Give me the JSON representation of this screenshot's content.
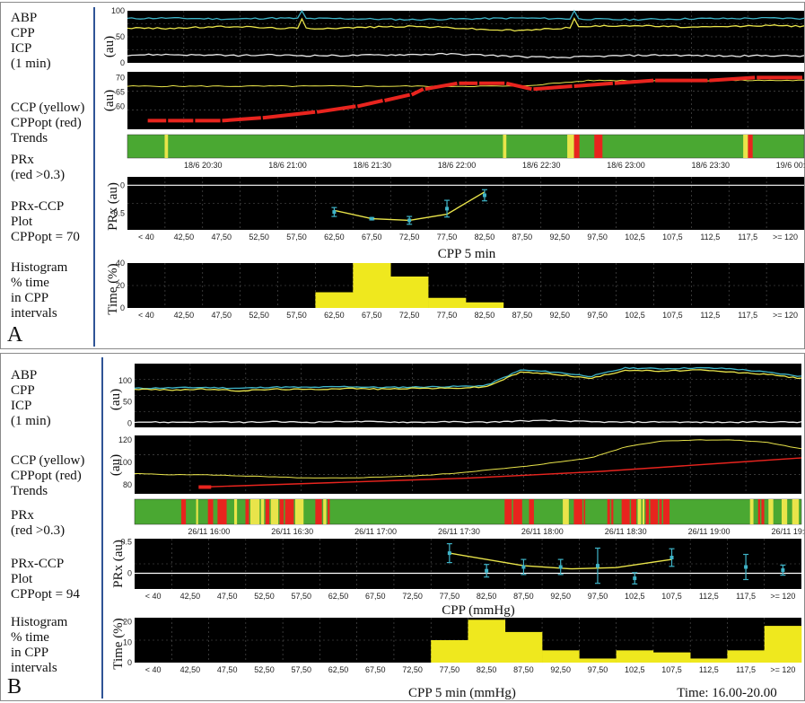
{
  "colors": {
    "background": "#000000",
    "abp": "#3fb4c8",
    "cpp": "#e9e44a",
    "icp": "#e8e8e8",
    "cppopt": "#e8241e",
    "prx_good": "#4aa832",
    "prx_warn": "#e9e44a",
    "prx_bad": "#e8241e",
    "histogram": "#efe81e",
    "fit": "#e9e44a",
    "errorbar": "#3fb4c8",
    "panel_line": "#2f5496"
  },
  "panels": [
    {
      "letter": "A",
      "label_abp": "ABP\nCPP\nICP\n(1 min)",
      "label_trends": "CCP (yellow)\nCPPopt (red)\nTrends",
      "label_prx": "PRx\n(red >0.3)",
      "label_prxccp": "PRx-CCP\nPlot\nCPPopt = 70",
      "label_hist": "Histogram\n% time\nin CPP\nintervals",
      "axis_au_1": "(au)",
      "axis_au_2": "(au)",
      "axis_prx": "PRx (au)",
      "axis_time": "Time (%)",
      "xlabel_prx": "CPP 5 min",
      "xlabel_hist": "",
      "footer_time": ""
    },
    {
      "letter": "B",
      "label_abp": "ABP\nCPP\nICP\n(1 min)",
      "label_trends": "CCP (yellow)\nCPPopt (red)\nTrends",
      "label_prx": "PRx\n(red >0.3)",
      "label_prxccp": "PRx-CCP\nPlot\nCPPopt = 94",
      "label_hist": "Histogram\n% time\nin CPP\nintervals",
      "axis_au_1": "(au)",
      "axis_au_2": "(au)",
      "axis_prx": "PRx (au)",
      "axis_time": "Time (%)",
      "xlabel_prx": "CPP (mmHg)",
      "xlabel_hist": "CPP 5 min (mmHg)",
      "footer_time": "Time: 16.00-20.00"
    }
  ],
  "chart_data": [
    {
      "panel": "A",
      "type": "line",
      "name": "ABP/CPP/ICP trend",
      "ylim": [
        0,
        100
      ],
      "yticks": [
        "100",
        "50",
        "0"
      ],
      "series": [
        {
          "name": "ABP",
          "values": [
            85,
            86,
            85,
            84,
            86,
            85,
            85,
            84,
            83,
            84,
            85,
            86,
            85,
            84,
            83,
            84,
            85,
            85,
            86,
            85
          ]
        },
        {
          "name": "CPP",
          "values": [
            67,
            66,
            68,
            70,
            67,
            66,
            67,
            69,
            70,
            68,
            64,
            62,
            66,
            70,
            72,
            70,
            68,
            70,
            72,
            70
          ]
        },
        {
          "name": "ICP",
          "values": [
            15,
            16,
            15,
            14,
            15,
            14,
            14,
            15,
            16,
            17,
            15,
            12,
            10,
            12,
            14,
            15,
            14,
            13,
            14,
            13
          ]
        }
      ],
      "spikes_x_frac": [
        0.26,
        0.66
      ]
    },
    {
      "panel": "A",
      "type": "line",
      "name": "CCP / CPPopt trends",
      "ylim": [
        52,
        72
      ],
      "yticks": [
        "70",
        "65",
        "60"
      ],
      "series": [
        {
          "name": "CCP",
          "values": [
            67,
            67,
            67,
            67,
            67,
            67,
            67,
            67,
            67,
            67,
            67,
            67,
            68,
            69,
            69,
            69,
            69,
            69,
            69,
            69
          ]
        },
        {
          "name": "CPPopt",
          "x_frac": [
            0.03,
            0.06,
            0.1,
            0.14,
            0.2,
            0.28,
            0.34,
            0.38,
            0.42,
            0.44,
            0.49,
            0.52,
            0.56,
            0.6,
            0.66,
            0.72,
            0.78,
            0.86,
            0.93,
            1.0
          ],
          "values": [
            55,
            55,
            55,
            55,
            56,
            58,
            60,
            62,
            64,
            66,
            68,
            68,
            68,
            66,
            67,
            68,
            69,
            69,
            70,
            70
          ]
        }
      ]
    },
    {
      "panel": "A",
      "type": "heatmap",
      "name": "PRx color bar",
      "bands": [
        {
          "from": 0.0,
          "to": 0.055,
          "state": "good"
        },
        {
          "from": 0.055,
          "to": 0.06,
          "state": "warn"
        },
        {
          "from": 0.06,
          "to": 0.555,
          "state": "good"
        },
        {
          "from": 0.555,
          "to": 0.56,
          "state": "warn"
        },
        {
          "from": 0.56,
          "to": 0.65,
          "state": "good"
        },
        {
          "from": 0.65,
          "to": 0.66,
          "state": "warn"
        },
        {
          "from": 0.66,
          "to": 0.668,
          "state": "bad"
        },
        {
          "from": 0.668,
          "to": 0.69,
          "state": "good"
        },
        {
          "from": 0.69,
          "to": 0.702,
          "state": "bad"
        },
        {
          "from": 0.702,
          "to": 0.91,
          "state": "good"
        },
        {
          "from": 0.91,
          "to": 0.917,
          "state": "warn"
        },
        {
          "from": 0.917,
          "to": 0.924,
          "state": "bad"
        },
        {
          "from": 0.924,
          "to": 1.0,
          "state": "good"
        }
      ],
      "time_ticks": [
        "18/6 20:30",
        "18/6 21:00",
        "18/6 21:30",
        "18/6 22:00",
        "18/6 22:30",
        "18/6 23:00",
        "18/6 23:30",
        "19/6 00:00"
      ]
    },
    {
      "panel": "A",
      "type": "scatter",
      "name": "PRx-CCP plot",
      "ylim": [
        -0.8,
        0.15
      ],
      "yticks": [
        "0",
        "-0.5"
      ],
      "categories": [
        "< 40",
        "42,50",
        "47,50",
        "52,50",
        "57,50",
        "62,50",
        "67,50",
        "72,50",
        "77,50",
        "82,50",
        "87,50",
        "92,50",
        "97,50",
        "102,5",
        "107,5",
        "112,5",
        "117,5",
        ">= 120"
      ],
      "points": [
        {
          "category": "62,50",
          "y": -0.48,
          "err": 0.08
        },
        {
          "category": "67,50",
          "y": -0.6,
          "err": 0.02
        },
        {
          "category": "72,50",
          "y": -0.63,
          "err": 0.07
        },
        {
          "category": "77,50",
          "y": -0.42,
          "err": 0.15
        },
        {
          "category": "82,50",
          "y": -0.18,
          "err": 0.1
        }
      ],
      "fit": [
        [
          62.5,
          -0.45
        ],
        [
          67.5,
          -0.6
        ],
        [
          72.5,
          -0.63
        ],
        [
          77.5,
          -0.52
        ],
        [
          82.5,
          -0.12
        ]
      ],
      "cppopt": 70
    },
    {
      "panel": "A",
      "type": "bar",
      "name": "Histogram",
      "ylim": [
        0,
        40
      ],
      "yticks": [
        "40",
        "20",
        "0"
      ],
      "categories": [
        "< 40",
        "42,50",
        "47,50",
        "52,50",
        "57,50",
        "62,50",
        "67,50",
        "72,50",
        "77,50",
        "82,50",
        "87,50",
        "92,50",
        "97,50",
        "102,5",
        "107,5",
        "112,5",
        "117,5",
        ">= 120"
      ],
      "values": [
        0,
        0,
        0,
        0,
        0,
        14,
        40,
        28,
        9,
        5,
        0,
        0,
        0,
        0,
        0,
        0,
        0,
        0
      ]
    },
    {
      "panel": "B",
      "type": "line",
      "name": "ABP/CPP/ICP trend",
      "ylim": [
        -10,
        140
      ],
      "yticks": [
        "100",
        "50",
        "0"
      ],
      "series": [
        {
          "name": "ABP",
          "values": [
            82,
            83,
            84,
            82,
            85,
            84,
            86,
            84,
            85,
            86,
            88,
            125,
            120,
            110,
            130,
            128,
            130,
            128,
            120,
            110
          ]
        },
        {
          "name": "CPP",
          "values": [
            80,
            78,
            80,
            76,
            80,
            79,
            82,
            80,
            82,
            82,
            85,
            120,
            115,
            105,
            125,
            122,
            125,
            120,
            115,
            105
          ]
        },
        {
          "name": "ICP",
          "values": [
            3,
            2,
            3,
            2,
            3,
            2,
            4,
            3,
            2,
            3,
            2,
            5,
            6,
            3,
            2,
            3,
            2,
            2,
            3,
            2
          ]
        }
      ],
      "spikes_x_frac": []
    },
    {
      "panel": "B",
      "type": "line",
      "name": "CCP / CPPopt trends",
      "ylim": [
        72,
        124
      ],
      "yticks": [
        "120",
        "100",
        "80"
      ],
      "series": [
        {
          "name": "CCP",
          "values": [
            90,
            89,
            89,
            88,
            87,
            86,
            86,
            87,
            88,
            90,
            93,
            96,
            100,
            104,
            114,
            119,
            120,
            120,
            118,
            112
          ]
        },
        {
          "name": "CPPopt",
          "x_frac": [
            0.1,
            0.2,
            0.3,
            0.4,
            0.5,
            0.6,
            0.7,
            0.8,
            0.9,
            1.0
          ],
          "values": [
            78,
            80,
            82,
            84,
            86,
            89,
            92,
            96,
            100,
            104
          ]
        }
      ]
    },
    {
      "panel": "B",
      "type": "heatmap",
      "name": "PRx color bar",
      "pattern_seed": 7,
      "time_ticks": [
        "26/11 16:00",
        "26/11 16:30",
        "26/11 17:00",
        "26/11 17:30",
        "26/11 18:00",
        "26/11 18:30",
        "26/11 19:00",
        "26/11 19:30"
      ]
    },
    {
      "panel": "B",
      "type": "scatter",
      "name": "PRx-CCP plot",
      "ylim": [
        -0.25,
        0.55
      ],
      "yticks": [
        "0.5",
        "0"
      ],
      "categories": [
        "< 40",
        "42,50",
        "47,50",
        "52,50",
        "57,50",
        "62,50",
        "67,50",
        "72,50",
        "77,50",
        "82,50",
        "87,50",
        "92,50",
        "97,50",
        "102,5",
        "107,5",
        "112,5",
        "117,5",
        ">= 120"
      ],
      "points": [
        {
          "category": "77,50",
          "y": 0.32,
          "err": 0.15
        },
        {
          "category": "82,50",
          "y": 0.04,
          "err": 0.1
        },
        {
          "category": "87,50",
          "y": 0.1,
          "err": 0.12
        },
        {
          "category": "92,50",
          "y": 0.1,
          "err": 0.12
        },
        {
          "category": "97,50",
          "y": 0.12,
          "err": 0.28
        },
        {
          "category": "102,5",
          "y": -0.08,
          "err": 0.09
        },
        {
          "category": "107,5",
          "y": 0.25,
          "err": 0.14
        },
        {
          "category": "117,5",
          "y": 0.1,
          "err": 0.2
        },
        {
          "category": ">= 120",
          "y": 0.05,
          "err": 0.08
        }
      ],
      "fit": [
        [
          77.5,
          0.32
        ],
        [
          87.5,
          0.12
        ],
        [
          94,
          0.07
        ],
        [
          100,
          0.09
        ],
        [
          107.5,
          0.22
        ]
      ],
      "cppopt": 94
    },
    {
      "panel": "B",
      "type": "bar",
      "name": "Histogram",
      "ylim": [
        0,
        22
      ],
      "yticks": [
        "20",
        "10",
        "0"
      ],
      "categories": [
        "< 40",
        "42,50",
        "47,50",
        "52,50",
        "57,50",
        "62,50",
        "67,50",
        "72,50",
        "77,50",
        "82,50",
        "87,50",
        "92,50",
        "97,50",
        "102,5",
        "107,5",
        "112,5",
        "117,5",
        ">= 120"
      ],
      "values": [
        0,
        0,
        0,
        0,
        0,
        0,
        0,
        0,
        11,
        21,
        15,
        6,
        2,
        6,
        5,
        2,
        6,
        18
      ]
    }
  ]
}
